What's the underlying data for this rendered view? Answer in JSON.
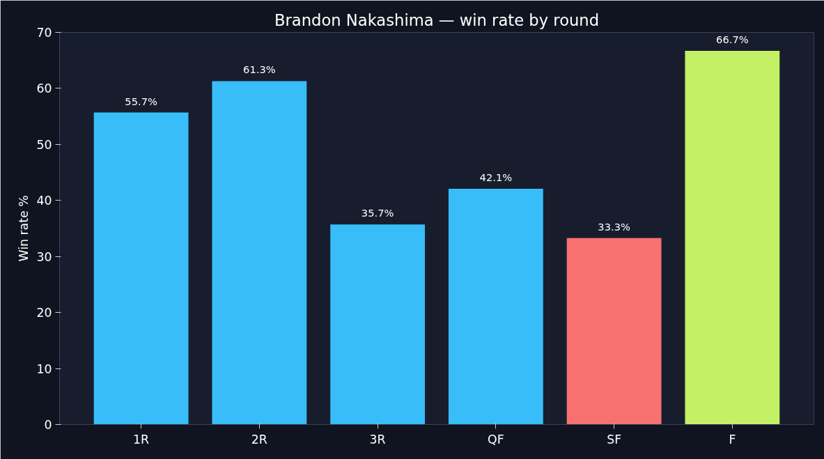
{
  "chart_data": {
    "type": "bar",
    "title": "Brandon Nakashima — win rate by round",
    "ylabel": "Win rate %",
    "categories": [
      "1R",
      "2R",
      "3R",
      "QF",
      "SF",
      "F"
    ],
    "values": [
      55.7,
      61.3,
      35.7,
      42.1,
      33.3,
      66.7
    ],
    "colors": [
      "#38bdf8",
      "#38bdf8",
      "#38bdf8",
      "#38bdf8",
      "#f87171",
      "#c3f064"
    ],
    "value_labels": [
      "55.7%",
      "61.3%",
      "35.7%",
      "42.1%",
      "33.3%",
      "66.7%"
    ],
    "ylim": [
      0,
      70
    ],
    "yticks": [
      0,
      10,
      20,
      30,
      40,
      50,
      60,
      70
    ],
    "grid": false
  }
}
